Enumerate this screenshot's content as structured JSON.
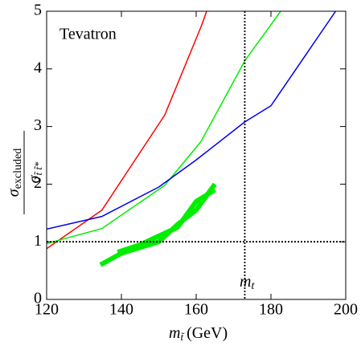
{
  "chart_data": {
    "type": "line",
    "annotations": {
      "experiment": "Tevatron",
      "mt_main": "m",
      "mt_sub": "t"
    },
    "xlabel": {
      "main": "m",
      "sub": "t̃",
      "unit": "(GeV)"
    },
    "ylabel": {
      "num_main": "σ",
      "num_sub": "excluded",
      "den_main": "σ",
      "den_sub": "t̃ t̃*"
    },
    "xlim": [
      120,
      200
    ],
    "xticks": [
      120,
      140,
      160,
      180,
      200
    ],
    "ylim": [
      0,
      5
    ],
    "yticks": [
      0,
      1,
      2,
      3,
      4,
      5
    ],
    "hline": 1,
    "vline": 173,
    "series": [
      {
        "color": "#ff0000",
        "width": 1.5,
        "x": [
          120,
          134.8,
          151.6,
          161.3,
          162.8
        ],
        "values": [
          0.88,
          1.55,
          3.2,
          4.73,
          5
        ]
      },
      {
        "color": "#00ee00",
        "width": 1.5,
        "x": [
          120,
          134.8,
          151.6,
          161.3,
          173.1,
          182.6
        ],
        "values": [
          0.97,
          1.23,
          1.98,
          2.74,
          4.15,
          5
        ]
      },
      {
        "color": "#0000ee",
        "width": 1.5,
        "x": [
          120,
          134.8,
          150,
          160,
          173,
          180,
          197.3
        ],
        "values": [
          1.22,
          1.44,
          1.95,
          2.42,
          3.08,
          3.36,
          5
        ]
      },
      {
        "color": "#00ee00",
        "width": 6,
        "x": [
          134.4,
          140,
          150,
          155,
          160,
          165
        ],
        "values": [
          0.6,
          0.8,
          1.0,
          1.3,
          1.55,
          2.0
        ]
      },
      {
        "color": "#00ee00",
        "width": 6,
        "x": [
          139,
          145,
          150,
          155,
          160,
          165
        ],
        "values": [
          0.82,
          0.95,
          1.1,
          1.25,
          1.7,
          1.9
        ]
      }
    ]
  }
}
